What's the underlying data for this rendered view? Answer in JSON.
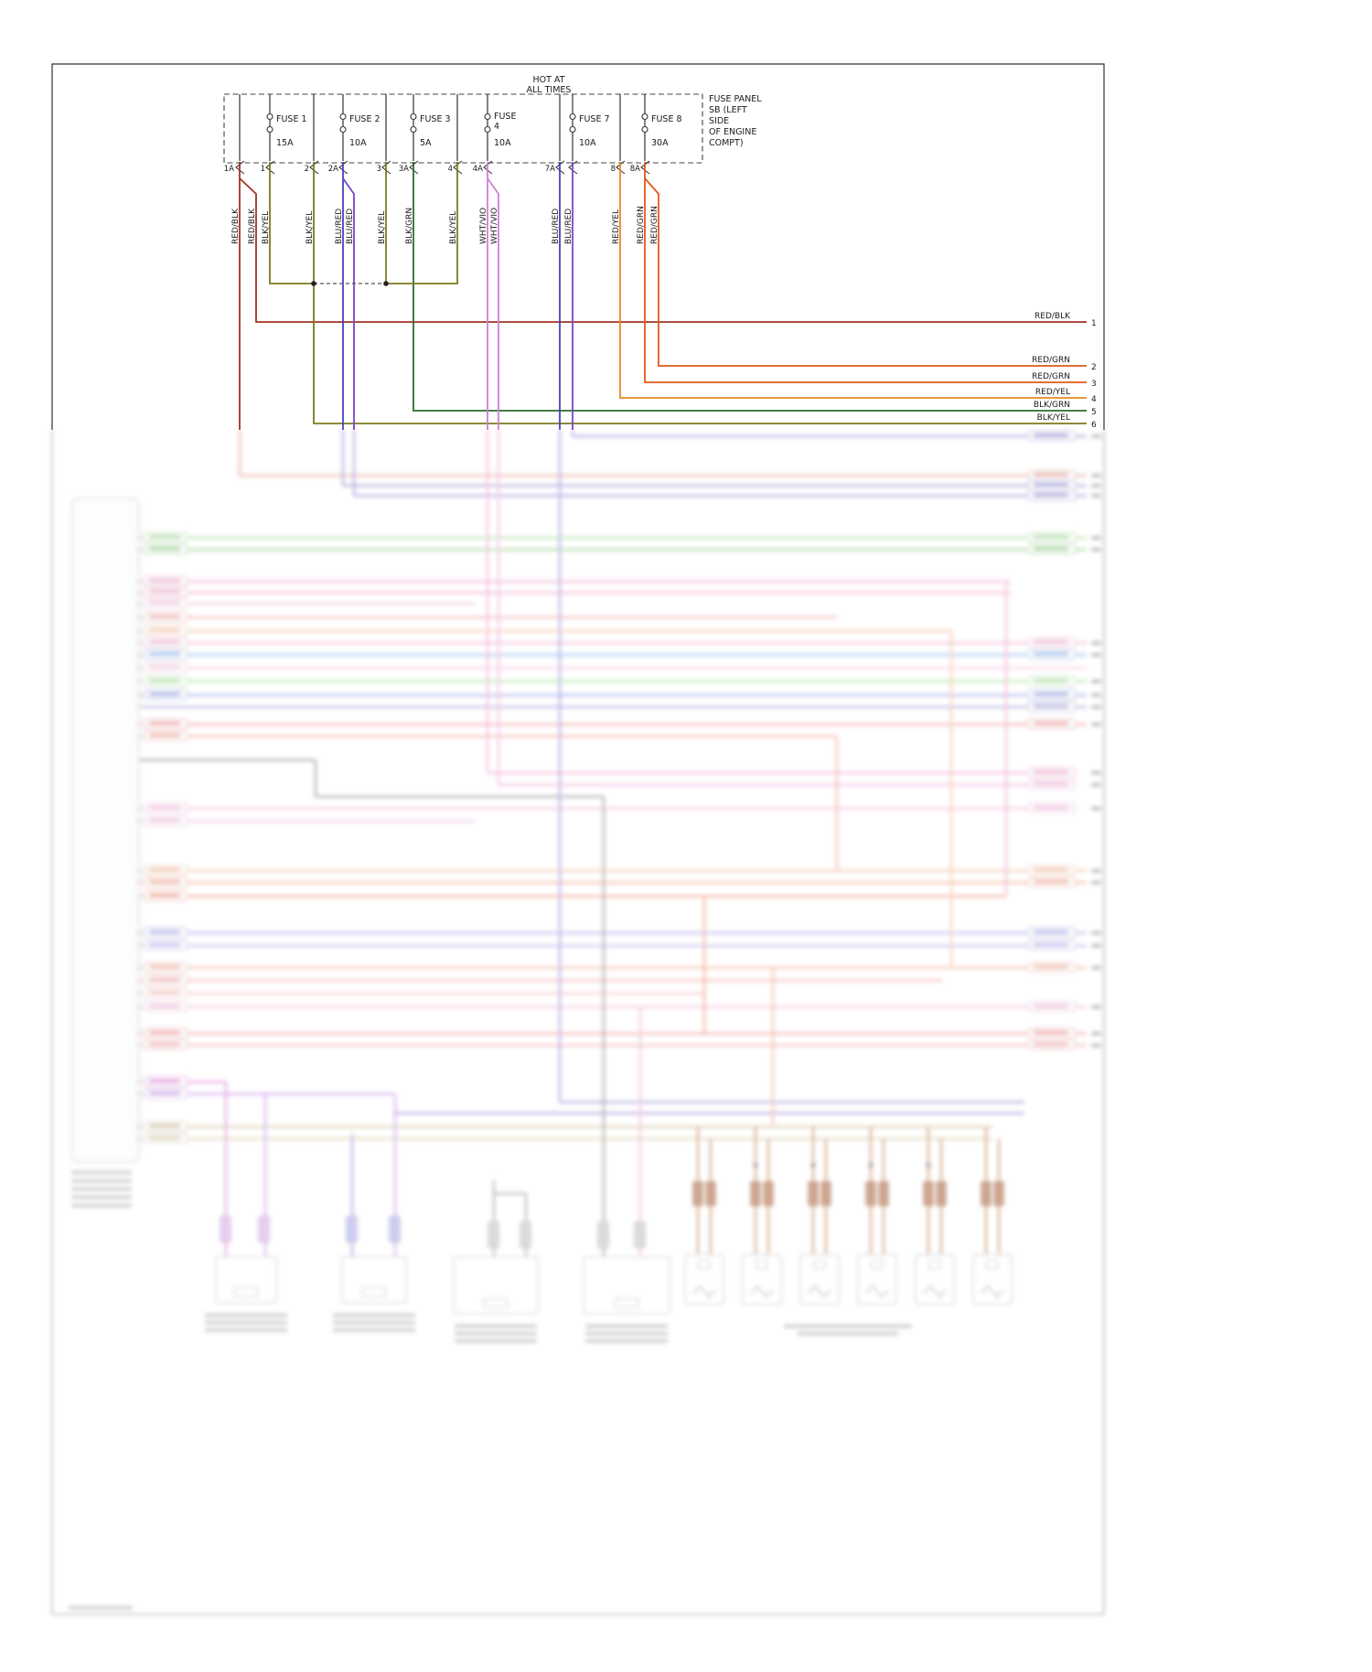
{
  "diagram": {
    "power_label": {
      "line1": "HOT AT",
      "line2": "ALL TIMES"
    },
    "fuse_panel_note": {
      "lines": [
        "FUSE PANEL",
        "SB (LEFT",
        "SIDE",
        "OF ENGINE",
        "COMPT)"
      ]
    },
    "fuses": [
      {
        "label": "FUSE 1",
        "rating": "15A"
      },
      {
        "label": "FUSE 2",
        "rating": "10A"
      },
      {
        "label": "FUSE 3",
        "rating": "5A"
      },
      {
        "label": "FUSE",
        "label2": "4",
        "rating": "10A"
      },
      {
        "label": "FUSE 7",
        "rating": "10A"
      },
      {
        "label": "FUSE 8",
        "rating": "30A"
      }
    ],
    "pins": [
      "1A",
      "1",
      "2",
      "2A",
      "3",
      "3A",
      "4",
      "4A",
      "7A",
      "8",
      "8A"
    ],
    "wire_labels": [
      "RED/BLK",
      "RED/BLK",
      "BLK/YEL",
      "BLK/YEL",
      "BLU/RED",
      "BLU/RED",
      "BLK/YEL",
      "BLK/GRN",
      "BLK/YEL",
      "WHT/VIO",
      "WHT/VIO",
      "BLU/RED",
      "BLU/RED",
      "RED/YEL",
      "RED/GRN",
      "RED/GRN"
    ],
    "right_exits": [
      {
        "label": "RED/BLK",
        "num": "1"
      },
      {
        "label": "RED/GRN",
        "num": "2"
      },
      {
        "label": "RED/GRN",
        "num": "3"
      },
      {
        "label": "RED/YEL",
        "num": "4"
      },
      {
        "label": "BLK/GRN",
        "num": "5"
      },
      {
        "label": "BLK/YEL",
        "num": "6"
      }
    ],
    "wire_colors": {
      "red_blk": "#a03323",
      "blk_yel": "#7d7a1e",
      "blu_red_blue": "#4444bb",
      "blu_red_violet": "#7a44c8",
      "blk_grn": "#2e6b2e",
      "wht_vio": "#cf7fd8",
      "red_yel": "#e8891e",
      "red_grn": "#df5a1a"
    }
  }
}
